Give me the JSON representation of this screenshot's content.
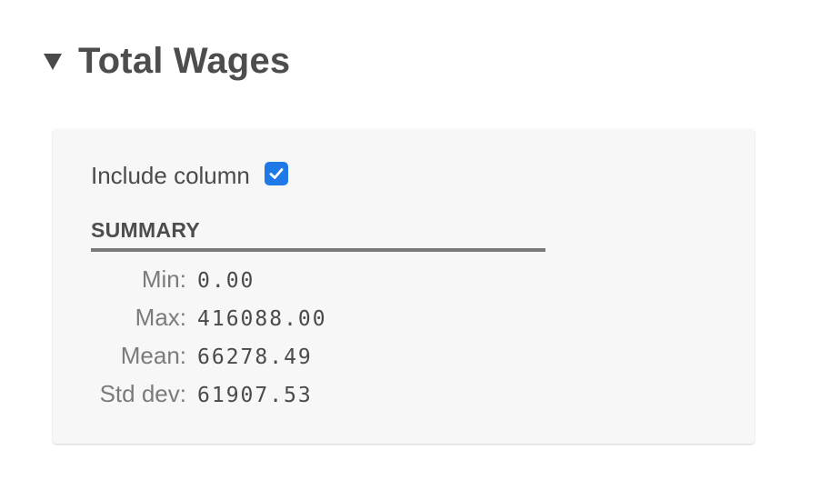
{
  "section": {
    "title": "Total Wages",
    "toggle_icon": "triangle-down-icon"
  },
  "panel": {
    "include_label": "Include column",
    "include_checked": true,
    "checkbox_color": "#1f7ae8",
    "summary_heading": "SUMMARY",
    "stats": [
      {
        "label": "Min:",
        "value": "0.00"
      },
      {
        "label": "Max:",
        "value": "416088.00"
      },
      {
        "label": "Mean:",
        "value": "66278.49"
      },
      {
        "label": "Std dev:",
        "value": "61907.53"
      }
    ]
  }
}
